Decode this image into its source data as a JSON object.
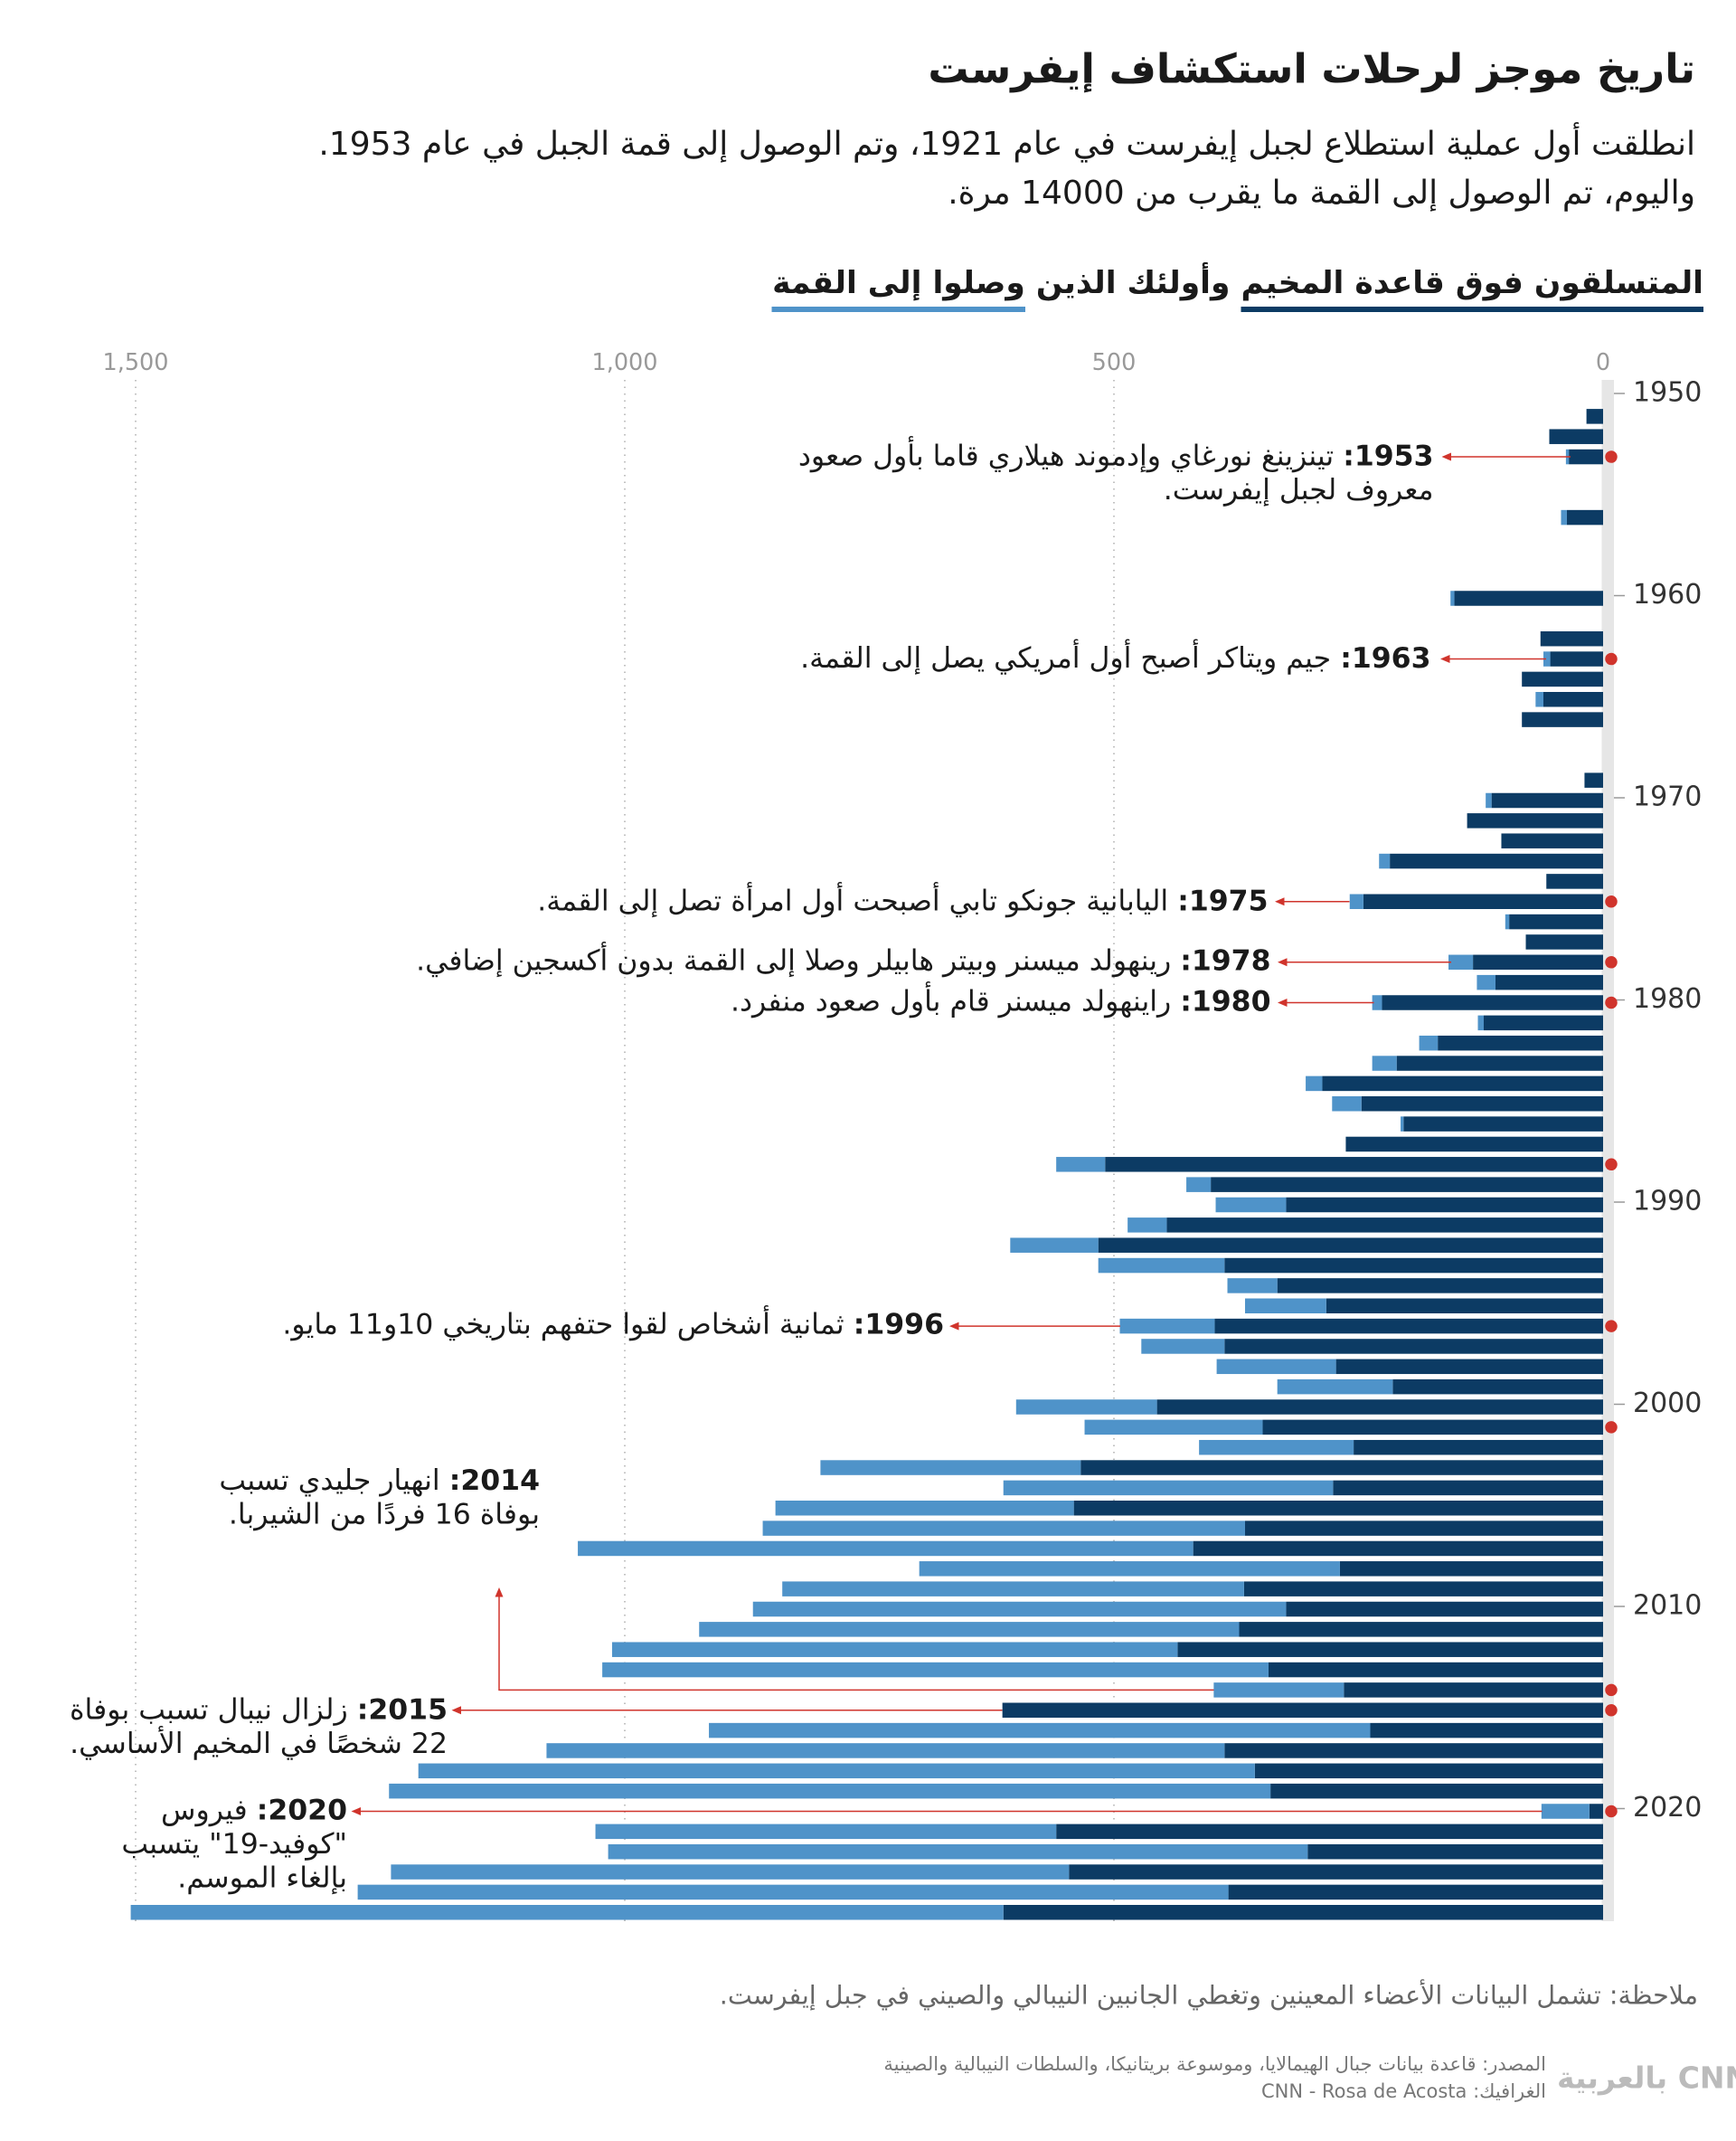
{
  "chart_data": {
    "type": "stacked-bar-horizontal",
    "title": "تاريخ موجز لرحلات استكشاف إيفرست",
    "subtitle": [
      "انطلقت أول عملية استطلاع لجبل إيفرست في عام 1921، وتم الوصول إلى قمة الجبل في عام 1953.",
      "واليوم، تم الوصول إلى القمة ما يقرب من 14000 مرة."
    ],
    "legend_joiner": "وأولئك الذين",
    "x": [
      1951,
      1952,
      1953,
      1954,
      1955,
      1956,
      1957,
      1958,
      1959,
      1960,
      1961,
      1962,
      1963,
      1964,
      1965,
      1966,
      1967,
      1968,
      1969,
      1970,
      1971,
      1972,
      1973,
      1974,
      1975,
      1976,
      1977,
      1978,
      1979,
      1980,
      1981,
      1982,
      1983,
      1984,
      1985,
      1986,
      1987,
      1988,
      1989,
      1990,
      1991,
      1992,
      1993,
      1994,
      1995,
      1996,
      1997,
      1998,
      1999,
      2000,
      2001,
      2002,
      2003,
      2004,
      2005,
      2006,
      2007,
      2008,
      2009,
      2010,
      2011,
      2012,
      2013,
      2014,
      2015,
      2016,
      2017,
      2018,
      2019,
      2020,
      2021,
      2022,
      2023,
      2024,
      2025
    ],
    "series": [
      {
        "name": "المتسلقون فوق قاعدة المخيم",
        "color": "#0c3b64",
        "values": [
          17,
          55,
          35,
          null,
          null,
          37,
          null,
          null,
          null,
          152,
          null,
          64,
          54,
          83,
          61,
          83,
          null,
          null,
          19,
          114,
          139,
          104,
          218,
          58,
          245,
          96,
          79,
          133,
          110,
          226,
          122,
          169,
          211,
          287,
          247,
          204,
          263,
          509,
          401,
          324,
          446,
          516,
          387,
          333,
          283,
          397,
          387,
          273,
          215,
          456,
          348,
          255,
          534,
          276,
          541,
          366,
          419,
          269,
          367,
          324,
          372,
          435,
          342,
          265,
          614,
          238,
          387,
          356,
          340,
          14,
          559,
          302,
          546,
          383,
          613
        ]
      },
      {
        "name": "وصلوا إلى القمة",
        "color": "#4f93c9",
        "values": [
          0,
          0,
          3,
          null,
          null,
          6,
          null,
          null,
          null,
          4,
          null,
          0,
          7,
          0,
          8,
          0,
          null,
          null,
          0,
          6,
          0,
          0,
          11,
          0,
          14,
          4,
          0,
          25,
          19,
          10,
          6,
          19,
          25,
          17,
          30,
          3,
          0,
          50,
          25,
          72,
          40,
          90,
          129,
          51,
          83,
          97,
          85,
          122,
          118,
          144,
          182,
          158,
          266,
          337,
          305,
          493,
          629,
          430,
          472,
          545,
          552,
          578,
          681,
          133,
          0,
          676,
          693,
          855,
          901,
          49,
          471,
          715,
          693,
          890,
          892
        ]
      }
    ],
    "xlim": [
      0,
      1500
    ],
    "xticks": [
      0,
      500,
      {
        "value": 1000,
        "label": "1,000"
      },
      {
        "value": 1500,
        "label": "1,500"
      }
    ],
    "ylim": [
      1950,
      2020
    ],
    "yticks": [
      1950,
      1960,
      1970,
      1980,
      1990,
      2000,
      2010,
      2020
    ],
    "grid": true,
    "markers": [
      1953,
      1963,
      1975,
      1978,
      1980,
      1988,
      1996,
      2001,
      2014,
      2015,
      2020
    ],
    "marker_color": "#d0342c",
    "annotations": [
      {
        "year": 1953,
        "label": "1953:",
        "lines": [
          "تينزينغ نورغاي وإدموند هيلاري قاما بأول صعود",
          "معروف لجبل إيفرست."
        ]
      },
      {
        "year": 1963,
        "label": "1963:",
        "lines": [
          "جيم ويتاكر أصبح أول أمريكي يصل إلى القمة."
        ]
      },
      {
        "year": 1975,
        "label": "1975:",
        "lines": [
          "اليابانية جونكو تابي أصبحت أول امرأة تصل إلى القمة."
        ]
      },
      {
        "year": 1978,
        "label": "1978:",
        "lines": [
          "رينهولد ميسنر وبيتر هابيلر وصلا إلى القمة بدون أكسجين إضافي."
        ]
      },
      {
        "year": 1980,
        "label": "1980:",
        "lines": [
          "راينهولد ميسنر قام بأول صعود منفرد."
        ]
      },
      {
        "year": 1996,
        "label": "1996:",
        "lines": [
          "ثمانية أشخاص لقوا حتفهم بتاريخي 10و11 مايو."
        ]
      },
      {
        "year": 2014,
        "label": "2014:",
        "lines": [
          "انهيار جليدي تسبب",
          "بوفاة 16 فردًا من الشيربا."
        ]
      },
      {
        "year": 2015,
        "label": "2015:",
        "lines": [
          "زلزال نيبال تسبب بوفاة",
          "22 شخصًا في المخيم الأساسي."
        ]
      },
      {
        "year": 2020,
        "label": "2020:",
        "lines": [
          "فيروس",
          "\"كوفيد-19\" يتسبب",
          "بإلغاء الموسم."
        ]
      }
    ],
    "note": "ملاحظة: تشمل البيانات الأعضاء المعينين وتغطي الجانبين النيبالي والصيني في جبل إيفرست.",
    "source": "المصدر: قاعدة بيانات جبال الهيمالايا، وموسوعة بريتانيكا، والسلطات النيبالية والصينية",
    "credit": "الغرافيك: CNN - Rosa de Acosta",
    "logo": "CNN بالعربية"
  }
}
